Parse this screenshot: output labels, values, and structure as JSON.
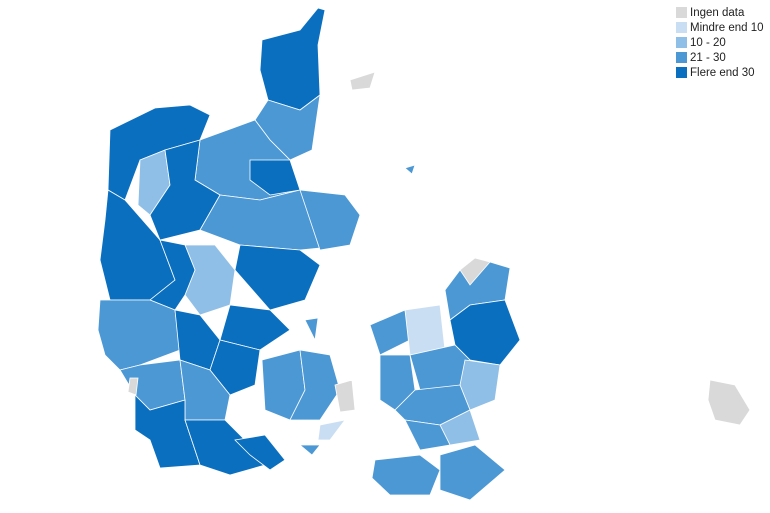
{
  "legend": {
    "items": [
      {
        "label": "Ingen data",
        "color": "#d9d9d9"
      },
      {
        "label": "Mindre end 10",
        "color": "#c9def2"
      },
      {
        "label": "10 - 20",
        "color": "#8fbfe6"
      },
      {
        "label": "21 - 30",
        "color": "#4b98d5"
      },
      {
        "label": "Flere end 30",
        "color": "#0b6fc0"
      }
    ]
  }
}
